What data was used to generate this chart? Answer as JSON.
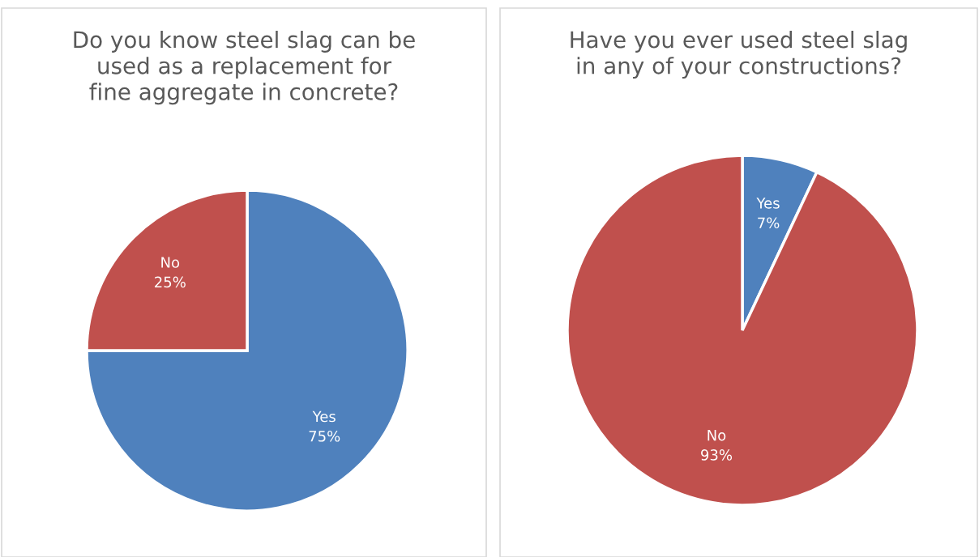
{
  "chart_data": [
    {
      "type": "pie",
      "title": "Do you know steel slag can be\nused as a replacement for\nfine aggregate in concrete?",
      "categories": [
        "Yes",
        "No"
      ],
      "values": [
        75,
        25
      ],
      "colors": [
        "#4f81bd",
        "#c0504d"
      ],
      "value_labels": [
        "75%",
        "25%"
      ],
      "legend": false
    },
    {
      "type": "pie",
      "title": "Have you ever used steel slag\nin any of your constructions?",
      "categories": [
        "Yes",
        "No"
      ],
      "values": [
        7,
        93
      ],
      "colors": [
        "#4f81bd",
        "#c0504d"
      ],
      "value_labels": [
        "7%",
        "93%"
      ],
      "legend": false
    }
  ]
}
